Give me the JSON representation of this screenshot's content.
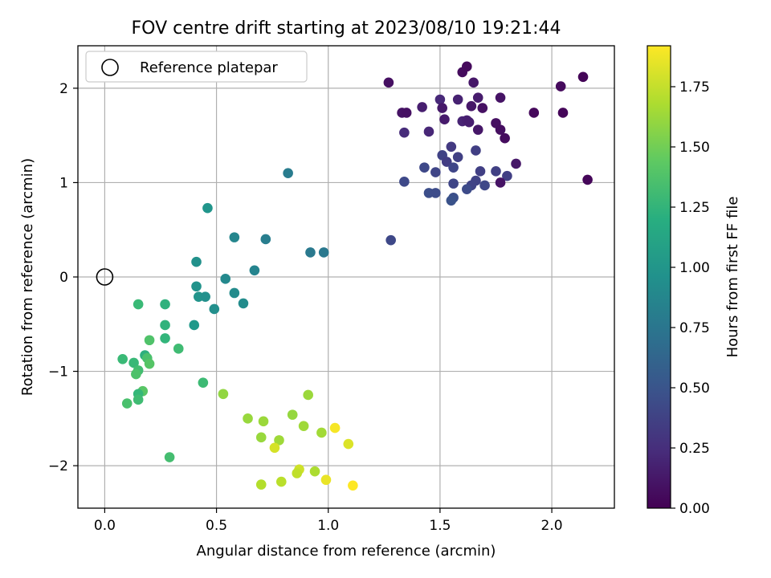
{
  "chart_data": {
    "type": "scatter",
    "title": "FOV centre drift starting at 2023/08/10 19:21:44",
    "xlabel": "Angular distance from reference (arcmin)",
    "ylabel": "Rotation from reference (arcmin)",
    "xlim": [
      -0.12,
      2.28
    ],
    "ylim": [
      -2.45,
      2.45
    ],
    "xticks": [
      "0.0",
      "0.5",
      "1.0",
      "1.5",
      "2.0"
    ],
    "yticks": [
      "−2",
      "−1",
      "0",
      "1",
      "2"
    ],
    "grid": true,
    "legend": {
      "placement": "top-left",
      "entries": [
        "Reference platepar"
      ]
    },
    "reference_point": {
      "x": 0.0,
      "y": 0.0
    },
    "colorbar": {
      "label": "Hours from first FF file",
      "colormap": "viridis",
      "range": [
        0.0,
        1.92
      ],
      "ticks": [
        "0.00",
        "0.25",
        "0.50",
        "0.75",
        "1.00",
        "1.25",
        "1.50",
        "1.75"
      ]
    },
    "points": [
      {
        "x": 1.27,
        "y": 2.06,
        "c": 0.08
      },
      {
        "x": 1.6,
        "y": 2.17,
        "c": 0.06
      },
      {
        "x": 1.62,
        "y": 2.23,
        "c": 0.05
      },
      {
        "x": 1.65,
        "y": 2.06,
        "c": 0.12
      },
      {
        "x": 2.04,
        "y": 2.02,
        "c": 0.05
      },
      {
        "x": 2.14,
        "y": 2.12,
        "c": 0.02
      },
      {
        "x": 1.5,
        "y": 1.88,
        "c": 0.22
      },
      {
        "x": 1.58,
        "y": 1.88,
        "c": 0.18
      },
      {
        "x": 1.67,
        "y": 1.9,
        "c": 0.15
      },
      {
        "x": 1.77,
        "y": 1.9,
        "c": 0.1
      },
      {
        "x": 1.42,
        "y": 1.8,
        "c": 0.16
      },
      {
        "x": 1.51,
        "y": 1.79,
        "c": 0.13
      },
      {
        "x": 1.64,
        "y": 1.81,
        "c": 0.12
      },
      {
        "x": 1.69,
        "y": 1.79,
        "c": 0.09
      },
      {
        "x": 1.33,
        "y": 1.74,
        "c": 0.1
      },
      {
        "x": 1.35,
        "y": 1.74,
        "c": 0.09
      },
      {
        "x": 1.92,
        "y": 1.74,
        "c": 0.04
      },
      {
        "x": 2.05,
        "y": 1.74,
        "c": 0.03
      },
      {
        "x": 1.52,
        "y": 1.67,
        "c": 0.14
      },
      {
        "x": 1.6,
        "y": 1.65,
        "c": 0.19
      },
      {
        "x": 1.62,
        "y": 1.66,
        "c": 0.17
      },
      {
        "x": 1.63,
        "y": 1.64,
        "c": 0.16
      },
      {
        "x": 1.75,
        "y": 1.63,
        "c": 0.08
      },
      {
        "x": 1.34,
        "y": 1.53,
        "c": 0.24
      },
      {
        "x": 1.45,
        "y": 1.54,
        "c": 0.21
      },
      {
        "x": 1.67,
        "y": 1.56,
        "c": 0.12
      },
      {
        "x": 1.77,
        "y": 1.56,
        "c": 0.07
      },
      {
        "x": 1.79,
        "y": 1.47,
        "c": 0.06
      },
      {
        "x": 1.55,
        "y": 1.38,
        "c": 0.33
      },
      {
        "x": 1.66,
        "y": 1.34,
        "c": 0.36
      },
      {
        "x": 1.51,
        "y": 1.29,
        "c": 0.38
      },
      {
        "x": 1.58,
        "y": 1.27,
        "c": 0.37
      },
      {
        "x": 1.53,
        "y": 1.22,
        "c": 0.35
      },
      {
        "x": 1.84,
        "y": 1.2,
        "c": 0.12
      },
      {
        "x": 1.43,
        "y": 1.16,
        "c": 0.42
      },
      {
        "x": 1.56,
        "y": 1.16,
        "c": 0.41
      },
      {
        "x": 1.48,
        "y": 1.11,
        "c": 0.4
      },
      {
        "x": 1.68,
        "y": 1.12,
        "c": 0.36
      },
      {
        "x": 1.75,
        "y": 1.12,
        "c": 0.37
      },
      {
        "x": 1.8,
        "y": 1.07,
        "c": 0.36
      },
      {
        "x": 1.34,
        "y": 1.01,
        "c": 0.43
      },
      {
        "x": 1.66,
        "y": 1.02,
        "c": 0.38
      },
      {
        "x": 1.77,
        "y": 1.0,
        "c": 0.1
      },
      {
        "x": 2.16,
        "y": 1.03,
        "c": 0.03
      },
      {
        "x": 1.56,
        "y": 0.99,
        "c": 0.4
      },
      {
        "x": 1.64,
        "y": 0.97,
        "c": 0.39
      },
      {
        "x": 1.7,
        "y": 0.97,
        "c": 0.42
      },
      {
        "x": 1.62,
        "y": 0.93,
        "c": 0.44
      },
      {
        "x": 1.45,
        "y": 0.89,
        "c": 0.46
      },
      {
        "x": 1.48,
        "y": 0.89,
        "c": 0.45
      },
      {
        "x": 1.56,
        "y": 0.84,
        "c": 0.47
      },
      {
        "x": 1.55,
        "y": 0.81,
        "c": 0.49
      },
      {
        "x": 1.28,
        "y": 0.39,
        "c": 0.42
      },
      {
        "x": 0.82,
        "y": 1.1,
        "c": 0.8
      },
      {
        "x": 0.46,
        "y": 0.73,
        "c": 1.0
      },
      {
        "x": 0.58,
        "y": 0.42,
        "c": 0.88
      },
      {
        "x": 0.72,
        "y": 0.4,
        "c": 0.82
      },
      {
        "x": 0.92,
        "y": 0.26,
        "c": 0.78
      },
      {
        "x": 0.98,
        "y": 0.26,
        "c": 0.77
      },
      {
        "x": 0.41,
        "y": 0.16,
        "c": 0.97
      },
      {
        "x": 0.67,
        "y": 0.07,
        "c": 0.87
      },
      {
        "x": 0.54,
        "y": -0.02,
        "c": 0.91
      },
      {
        "x": 0.41,
        "y": -0.1,
        "c": 0.98
      },
      {
        "x": 0.58,
        "y": -0.17,
        "c": 0.92
      },
      {
        "x": 0.42,
        "y": -0.21,
        "c": 0.99
      },
      {
        "x": 0.45,
        "y": -0.21,
        "c": 0.96
      },
      {
        "x": 0.62,
        "y": -0.28,
        "c": 0.93
      },
      {
        "x": 0.49,
        "y": -0.34,
        "c": 0.95
      },
      {
        "x": 0.4,
        "y": -0.51,
        "c": 1.03
      },
      {
        "x": 0.15,
        "y": -0.29,
        "c": 1.3
      },
      {
        "x": 0.27,
        "y": -0.29,
        "c": 1.23
      },
      {
        "x": 0.27,
        "y": -0.51,
        "c": 1.24
      },
      {
        "x": 0.27,
        "y": -0.65,
        "c": 1.26
      },
      {
        "x": 0.2,
        "y": -0.67,
        "c": 1.38
      },
      {
        "x": 0.33,
        "y": -0.76,
        "c": 1.32
      },
      {
        "x": 0.18,
        "y": -0.83,
        "c": 1.21
      },
      {
        "x": 0.08,
        "y": -0.87,
        "c": 1.3
      },
      {
        "x": 0.19,
        "y": -0.86,
        "c": 1.36
      },
      {
        "x": 0.13,
        "y": -0.91,
        "c": 1.29
      },
      {
        "x": 0.2,
        "y": -0.92,
        "c": 1.4
      },
      {
        "x": 0.15,
        "y": -0.99,
        "c": 1.33
      },
      {
        "x": 0.14,
        "y": -1.03,
        "c": 1.37
      },
      {
        "x": 0.44,
        "y": -1.12,
        "c": 1.31
      },
      {
        "x": 0.17,
        "y": -1.21,
        "c": 1.41
      },
      {
        "x": 0.15,
        "y": -1.24,
        "c": 1.28
      },
      {
        "x": 0.15,
        "y": -1.3,
        "c": 1.32
      },
      {
        "x": 0.1,
        "y": -1.34,
        "c": 1.36
      },
      {
        "x": 0.29,
        "y": -1.91,
        "c": 1.34
      },
      {
        "x": 0.53,
        "y": -1.24,
        "c": 1.6
      },
      {
        "x": 0.91,
        "y": -1.25,
        "c": 1.63
      },
      {
        "x": 0.84,
        "y": -1.46,
        "c": 1.61
      },
      {
        "x": 0.64,
        "y": -1.5,
        "c": 1.62
      },
      {
        "x": 0.71,
        "y": -1.53,
        "c": 1.63
      },
      {
        "x": 0.89,
        "y": -1.58,
        "c": 1.64
      },
      {
        "x": 1.03,
        "y": -1.6,
        "c": 1.9
      },
      {
        "x": 0.97,
        "y": -1.65,
        "c": 1.65
      },
      {
        "x": 0.7,
        "y": -1.7,
        "c": 1.62
      },
      {
        "x": 0.78,
        "y": -1.73,
        "c": 1.64
      },
      {
        "x": 1.09,
        "y": -1.77,
        "c": 1.82
      },
      {
        "x": 0.76,
        "y": -1.81,
        "c": 1.8
      },
      {
        "x": 0.87,
        "y": -2.04,
        "c": 1.78
      },
      {
        "x": 0.94,
        "y": -2.06,
        "c": 1.68
      },
      {
        "x": 0.86,
        "y": -2.08,
        "c": 1.74
      },
      {
        "x": 0.99,
        "y": -2.15,
        "c": 1.86
      },
      {
        "x": 0.79,
        "y": -2.17,
        "c": 1.72
      },
      {
        "x": 0.7,
        "y": -2.2,
        "c": 1.7
      },
      {
        "x": 1.11,
        "y": -2.21,
        "c": 1.92
      }
    ]
  }
}
